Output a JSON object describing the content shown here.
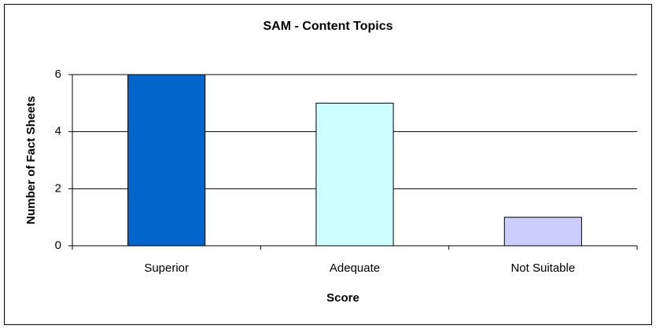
{
  "chart_data": {
    "type": "bar",
    "title": "SAM - Content Topics",
    "x_label": "Score",
    "y_label": "Number of Fact Sheets",
    "categories": [
      "Superior",
      "Adequate",
      "Not Suitable"
    ],
    "values": [
      6,
      5,
      1
    ],
    "colors": [
      "#0066cc",
      "#ccffff",
      "#ccccff"
    ],
    "ylim": [
      0,
      6
    ],
    "yticks": [
      0,
      2,
      4,
      6
    ],
    "grid": true
  }
}
